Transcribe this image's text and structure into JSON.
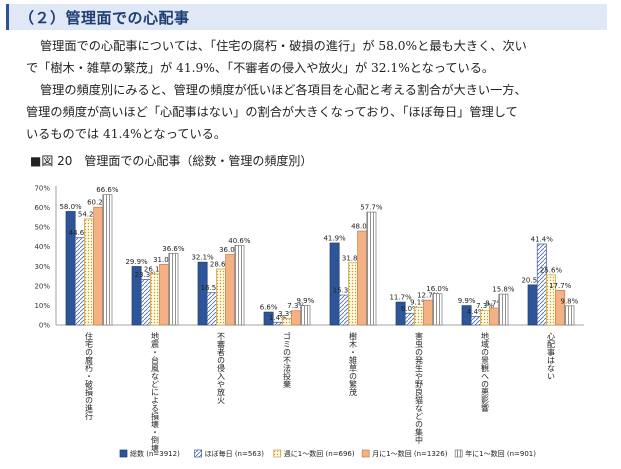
{
  "section": {
    "heading": "（２）管理面での心配事",
    "paragraphs": [
      "管理面での心配事については、「住宅の腐朽・破損の進行」が 58.0%と最も大きく、次い",
      "で「樹木・雑草の繁茂」が 41.9%、「不審者の侵入や放火」が 32.1%となっている。",
      "管理の頻度別にみると、管理の頻度が低いほど各項目を心配と考える割合が大きい一方、",
      "管理の頻度が高いほど「心配事はない」の割合が大きくなっており、「ほぼ毎日」管理して",
      "いるものでは 41.4%となっている。"
    ]
  },
  "figure": {
    "caption": "■図 20　管理面での心配事（総数・管理の頻度別）"
  },
  "chart_data": {
    "type": "bar",
    "ylim": [
      0,
      70
    ],
    "yticks": [
      0,
      10,
      20,
      30,
      40,
      50,
      60,
      70
    ],
    "tick_suffix": "%",
    "grid": false,
    "legend_position": "bottom",
    "categories": [
      "住宅の腐朽・破損の進行",
      "地震・台風などによる損壊・倒壊",
      "不審者の侵入や放火",
      "ゴミの不法投棄",
      "樹木・雑草の繁茂",
      "害虫の発生や野良猫などの集中",
      "地域の景観への悪影響",
      "心配事はない"
    ],
    "series": [
      {
        "name": "総数 (n=3912)",
        "fill": "#2e5597",
        "pattern": "solid",
        "values": [
          58.0,
          29.9,
          32.1,
          6.6,
          41.9,
          11.7,
          9.9,
          20.5
        ]
      },
      {
        "name": "ほぼ毎日 (n=563)",
        "fill": "#ffffff",
        "pattern": "hatch",
        "values": [
          44.6,
          23.3,
          16.5,
          1.4,
          15.3,
          6.0,
          4.4,
          41.4
        ]
      },
      {
        "name": "週に1～数回 (n=696)",
        "fill": "#ffffff",
        "pattern": "dots",
        "values": [
          54.2,
          26.1,
          28.6,
          3.3,
          31.8,
          9.1,
          7.3,
          25.6
        ]
      },
      {
        "name": "月に1～数回 (n=1326)",
        "fill": "#f4b183",
        "pattern": "solid",
        "values": [
          60.2,
          31.0,
          36.0,
          7.3,
          48.0,
          12.7,
          8.7,
          17.7
        ]
      },
      {
        "name": "年に1～数回 (n=901)",
        "fill": "#ffffff",
        "pattern": "vlines",
        "values": [
          66.6,
          36.6,
          40.6,
          9.9,
          57.7,
          16.0,
          15.8,
          9.8
        ]
      }
    ],
    "data_labels": [
      [
        "58.0%",
        "29.9%",
        "32.1%",
        "6.6%",
        "41.9%",
        "11.7%",
        "9.9%",
        "20.5%"
      ],
      [
        "44.6%",
        "23.3%",
        "16.5%",
        "1.4%",
        "15.3%",
        "6.0%",
        "4.4%",
        "41.4%"
      ],
      [
        "54.2%",
        "26.1%",
        "28.6%",
        "3.3%",
        "31.8%",
        "9.1%",
        "7.3%",
        "25.6%"
      ],
      [
        "60.2%",
        "31.0%",
        "36.0%",
        "7.3%",
        "48.0%",
        "12.7%",
        "8.7%",
        "17.7%"
      ],
      [
        "66.6%",
        "36.6%",
        "40.6%",
        "9.9%",
        "57.7%",
        "16.0%",
        "15.8%",
        "9.8%"
      ]
    ]
  }
}
